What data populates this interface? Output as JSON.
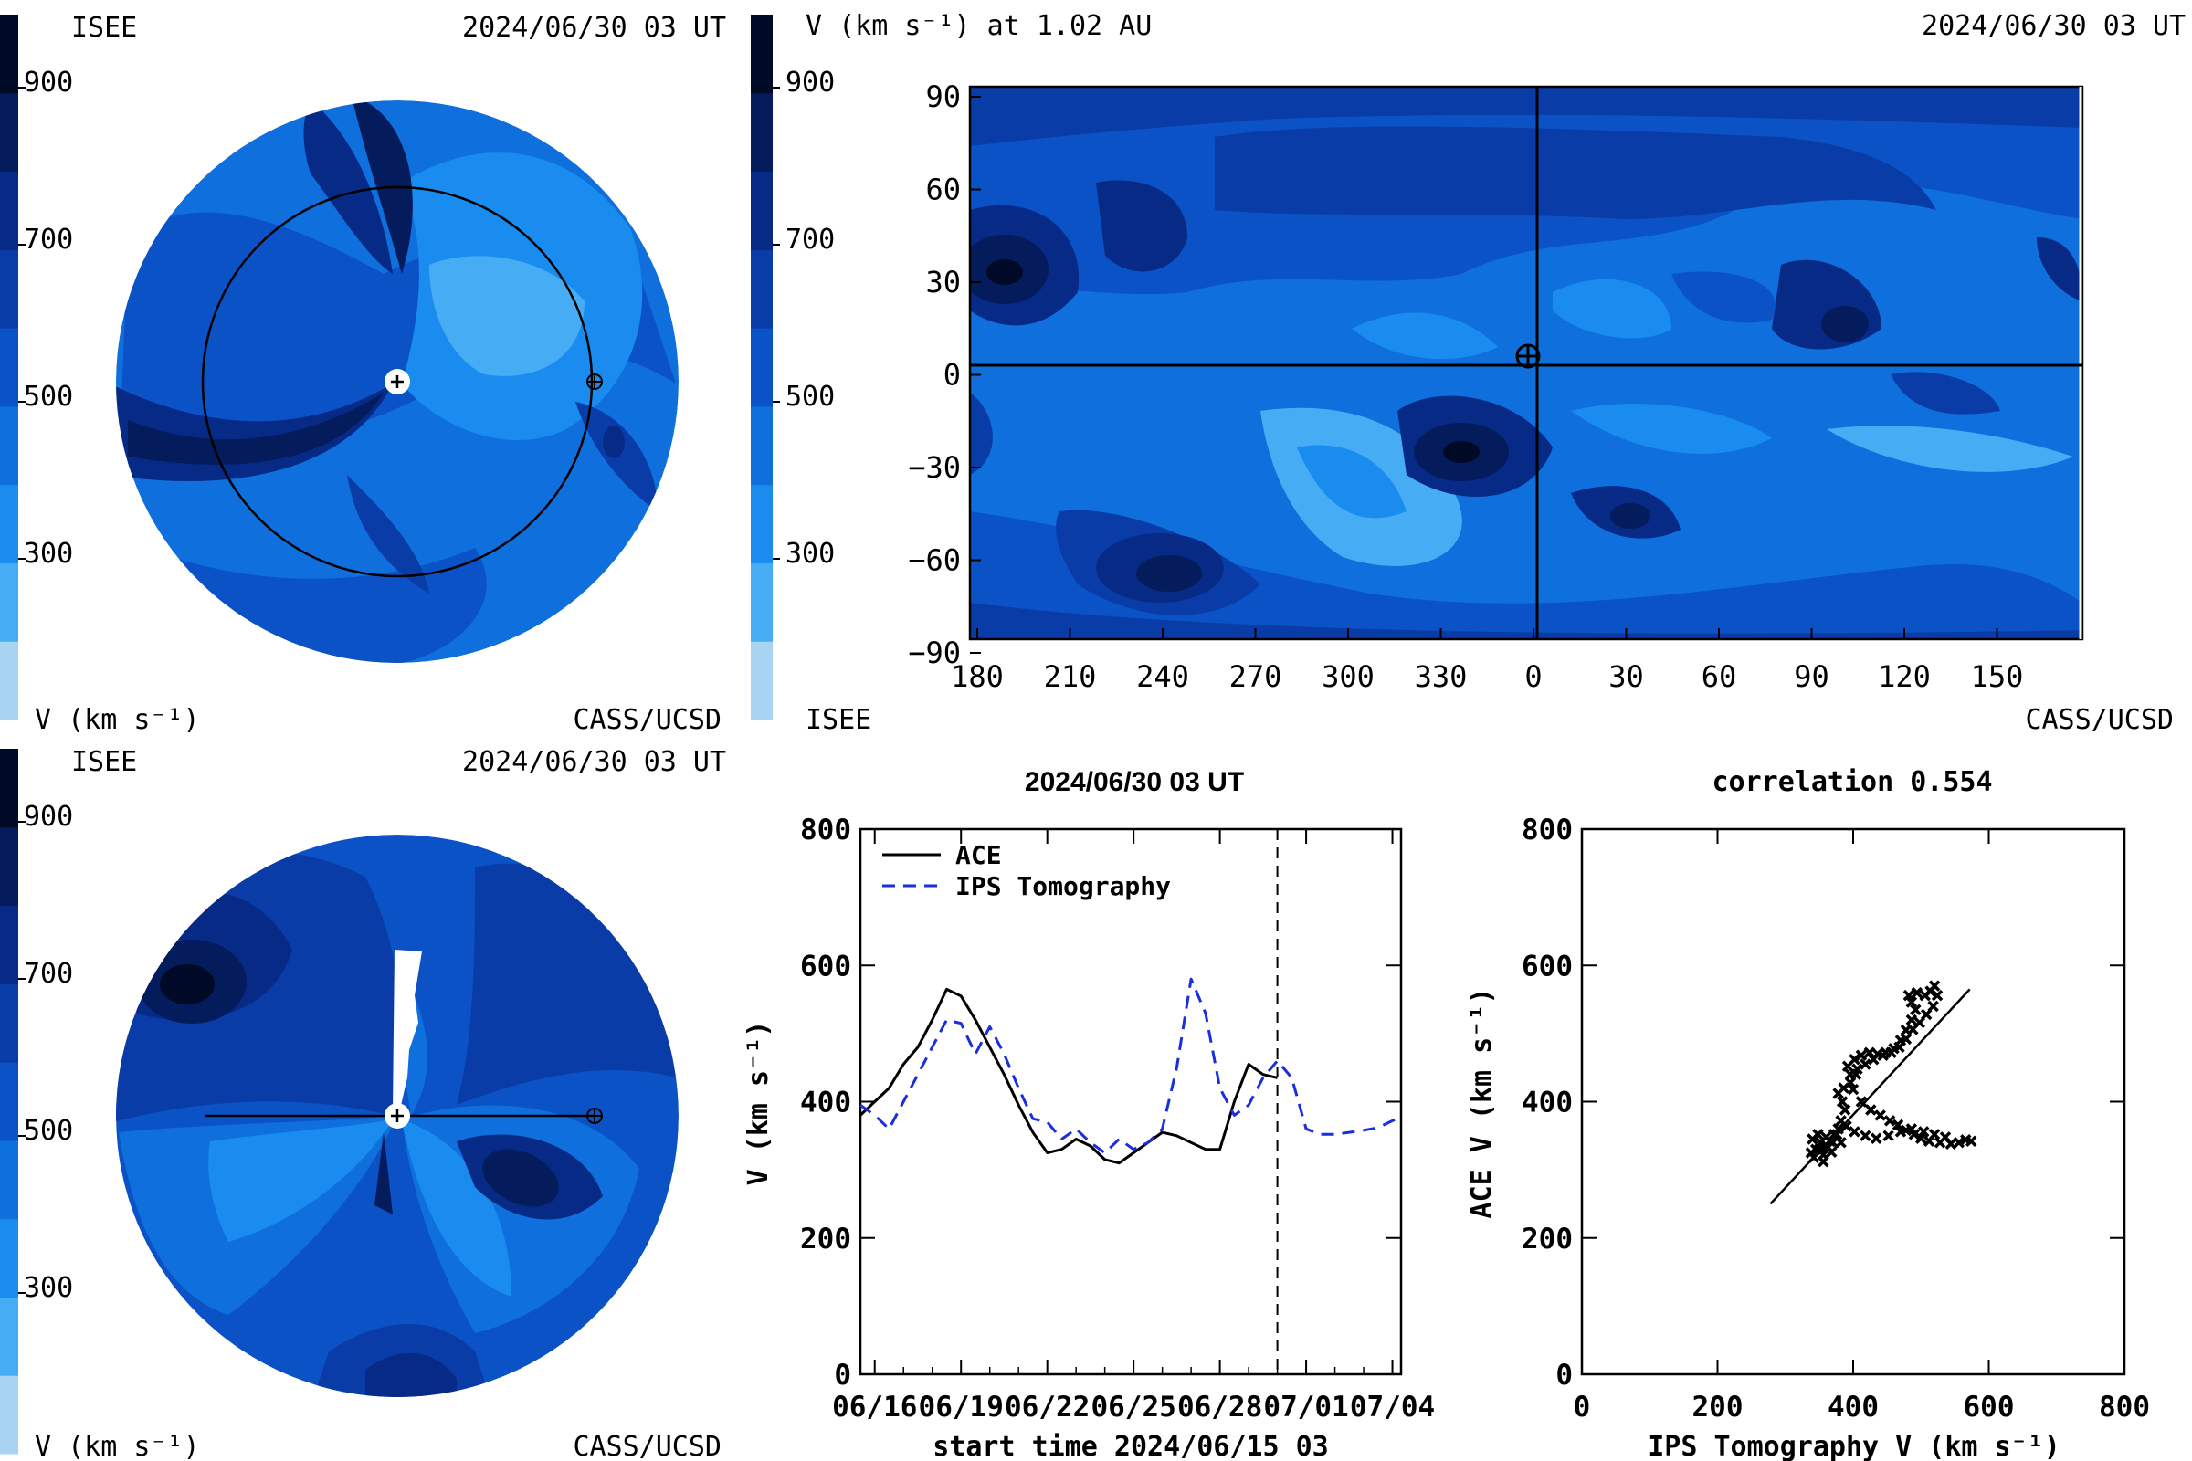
{
  "colorbar": {
    "ticks": [
      "900",
      "700",
      "500",
      "300"
    ],
    "colors": [
      "#a8d4f2",
      "#46adf4",
      "#1a8cf0",
      "#0f6fdc",
      "#0b52c6",
      "#0a3ca8",
      "#062a86",
      "#041b5c",
      "#000a26"
    ]
  },
  "panel_top_left": {
    "label_left": "ISEE",
    "timestamp": "2024/06/30 03 UT",
    "unit_label": "V (km s⁻¹)",
    "credit": "CASS/UCSD",
    "ticks": [
      "900",
      "700",
      "500",
      "300"
    ]
  },
  "panel_top_right": {
    "title": "V (km s⁻¹) at 1.02 AU",
    "timestamp": "2024/06/30 03 UT",
    "colorbar_ticks": [
      "900",
      "700",
      "500",
      "300"
    ],
    "colorbar_label": "ISEE",
    "credit": "CASS/UCSD",
    "x_ticks": [
      "180",
      "210",
      "240",
      "270",
      "300",
      "330",
      "0",
      "30",
      "60",
      "90",
      "120",
      "150"
    ],
    "y_ticks": [
      "90",
      "60",
      "30",
      "0",
      "−30",
      "−60",
      "−90"
    ]
  },
  "panel_bottom_left": {
    "label_left": "ISEE",
    "timestamp": "2024/06/30 03 UT",
    "unit_label": "V (km s⁻¹)",
    "credit": "CASS/UCSD",
    "ticks": [
      "900",
      "700",
      "500",
      "300"
    ]
  },
  "chart_data": [
    {
      "type": "line",
      "title": "2024/06/30 03 UT",
      "xlabel": "start time 2024/06/15 03",
      "ylabel": "V (km s⁻¹)",
      "ylim": [
        0,
        800
      ],
      "xlim": [
        15.5,
        34.3
      ],
      "x_tick_labels": [
        "06/16",
        "06/19",
        "06/22",
        "06/25",
        "06/28",
        "07/01",
        "07/04"
      ],
      "x_tick_values": [
        16,
        19,
        22,
        25,
        28,
        31,
        34
      ],
      "y_tick_labels": [
        "0",
        "200",
        "400",
        "600",
        "800"
      ],
      "y_tick_values": [
        0,
        200,
        400,
        600,
        800
      ],
      "vline_x": 30.0,
      "legend": "top-left",
      "series": [
        {
          "name": "ACE",
          "color": "#000000",
          "style": "solid",
          "x": [
            15.5,
            16.0,
            16.5,
            17.0,
            17.5,
            18.0,
            18.5,
            19.0,
            19.5,
            20.0,
            20.5,
            21.0,
            21.5,
            22.0,
            22.5,
            23.0,
            23.5,
            24.0,
            24.5,
            25.0,
            25.5,
            26.0,
            26.5,
            27.0,
            27.5,
            28.0,
            28.5,
            29.0,
            29.5,
            30.0
          ],
          "y": [
            380,
            400,
            420,
            455,
            480,
            520,
            565,
            555,
            520,
            480,
            440,
            395,
            355,
            325,
            330,
            345,
            335,
            315,
            310,
            325,
            340,
            355,
            350,
            340,
            330,
            330,
            400,
            455,
            440,
            435
          ]
        },
        {
          "name": "IPS Tomography",
          "color": "#1a2ee0",
          "style": "dashed",
          "x": [
            15.5,
            16.0,
            16.5,
            17.0,
            17.5,
            18.0,
            18.5,
            19.0,
            19.5,
            20.0,
            20.5,
            21.0,
            21.5,
            22.0,
            22.5,
            23.0,
            23.5,
            24.0,
            24.5,
            25.0,
            25.5,
            26.0,
            26.5,
            27.0,
            27.5,
            28.0,
            28.5,
            29.0,
            29.5,
            30.0,
            30.5,
            31.0,
            31.5,
            32.0,
            32.5,
            33.0,
            33.5,
            34.0,
            34.3
          ],
          "y": [
            395,
            380,
            360,
            400,
            440,
            480,
            520,
            515,
            470,
            510,
            470,
            420,
            375,
            370,
            345,
            360,
            340,
            325,
            345,
            330,
            340,
            360,
            450,
            580,
            530,
            420,
            380,
            395,
            435,
            460,
            435,
            360,
            352,
            352,
            355,
            358,
            362,
            372,
            378
          ]
        }
      ]
    },
    {
      "type": "scatter",
      "title": "correlation 0.554",
      "xlabel": "IPS Tomography V (km s⁻¹)",
      "ylabel": "ACE V (km s⁻¹)",
      "xlim": [
        0,
        800
      ],
      "ylim": [
        0,
        800
      ],
      "x_tick_labels": [
        "0",
        "200",
        "400",
        "600",
        "800"
      ],
      "y_tick_labels": [
        "0",
        "200",
        "400",
        "600",
        "800"
      ],
      "fit_line": {
        "x": [
          278,
          572
        ],
        "y": [
          250,
          565
        ]
      },
      "points": [
        [
          338,
          325
        ],
        [
          345,
          330
        ],
        [
          352,
          340
        ],
        [
          340,
          345
        ],
        [
          356,
          322
        ],
        [
          362,
          334
        ],
        [
          370,
          340
        ],
        [
          348,
          352
        ],
        [
          360,
          348
        ],
        [
          372,
          352
        ],
        [
          378,
          360
        ],
        [
          382,
          372
        ],
        [
          388,
          388
        ],
        [
          384,
          400
        ],
        [
          378,
          412
        ],
        [
          386,
          420
        ],
        [
          396,
          428
        ],
        [
          404,
          440
        ],
        [
          392,
          452
        ],
        [
          402,
          462
        ],
        [
          412,
          468
        ],
        [
          424,
          472
        ],
        [
          436,
          470
        ],
        [
          448,
          472
        ],
        [
          460,
          478
        ],
        [
          470,
          490
        ],
        [
          478,
          505
        ],
        [
          486,
          520
        ],
        [
          492,
          535
        ],
        [
          486,
          546
        ],
        [
          482,
          556
        ],
        [
          494,
          560
        ],
        [
          506,
          556
        ],
        [
          514,
          562
        ],
        [
          520,
          570
        ],
        [
          524,
          556
        ],
        [
          518,
          540
        ],
        [
          508,
          528
        ],
        [
          498,
          516
        ],
        [
          488,
          506
        ],
        [
          478,
          492
        ],
        [
          468,
          480
        ],
        [
          456,
          472
        ],
        [
          444,
          468
        ],
        [
          430,
          462
        ],
        [
          418,
          455
        ],
        [
          406,
          448
        ],
        [
          396,
          440
        ],
        [
          400,
          418
        ],
        [
          412,
          400
        ],
        [
          426,
          388
        ],
        [
          440,
          380
        ],
        [
          454,
          372
        ],
        [
          466,
          366
        ],
        [
          478,
          358
        ],
        [
          490,
          352
        ],
        [
          500,
          346
        ],
        [
          512,
          342
        ],
        [
          528,
          340
        ],
        [
          544,
          338
        ],
        [
          556,
          340
        ],
        [
          566,
          344
        ],
        [
          574,
          342
        ],
        [
          536,
          348
        ],
        [
          520,
          352
        ],
        [
          504,
          356
        ],
        [
          486,
          360
        ],
        [
          470,
          356
        ],
        [
          452,
          350
        ],
        [
          434,
          346
        ],
        [
          418,
          350
        ],
        [
          402,
          356
        ],
        [
          390,
          364
        ],
        [
          376,
          352
        ],
        [
          366,
          342
        ],
        [
          350,
          330
        ],
        [
          342,
          318
        ],
        [
          356,
          312
        ],
        [
          368,
          326
        ],
        [
          382,
          340
        ]
      ]
    }
  ]
}
